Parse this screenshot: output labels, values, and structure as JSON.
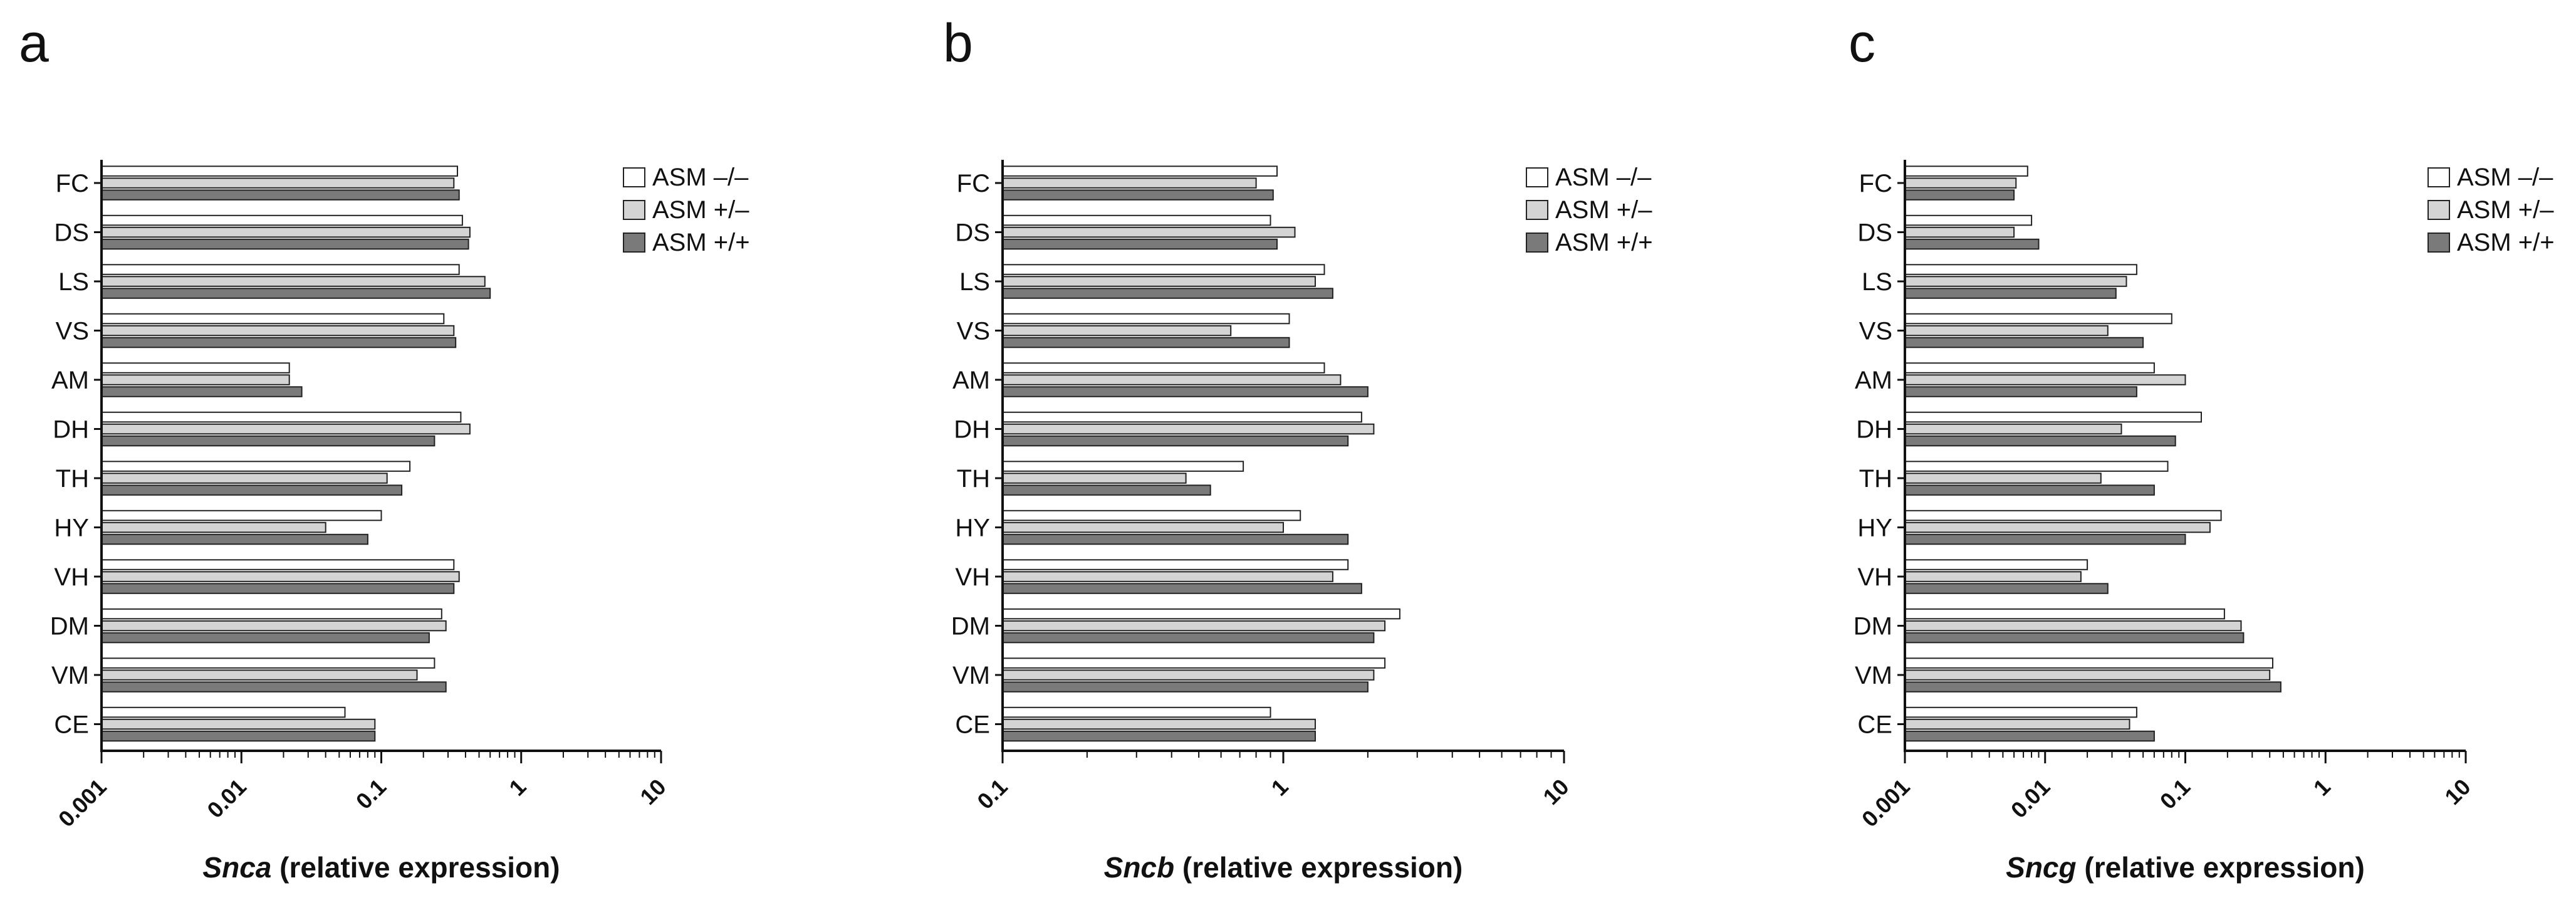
{
  "chart_data": [
    {
      "panel": "a",
      "type": "bar",
      "orientation": "horizontal",
      "scale": "log",
      "xlim": [
        0.001,
        10
      ],
      "xticks": [
        "0.001",
        "0.01",
        "0.1",
        "1",
        "10"
      ],
      "xlabel_gene": "Snca",
      "xlabel_rest": " (relative expression)",
      "categories": [
        "FC",
        "DS",
        "LS",
        "VS",
        "AM",
        "DH",
        "TH",
        "HY",
        "VH",
        "DM",
        "VM",
        "CE"
      ],
      "series": [
        {
          "name": "ASM –/–",
          "color": "#ffffff",
          "values": [
            0.35,
            0.38,
            0.36,
            0.28,
            0.022,
            0.37,
            0.16,
            0.1,
            0.33,
            0.27,
            0.24,
            0.055
          ]
        },
        {
          "name": "ASM +/–",
          "color": "#d4d4d4",
          "values": [
            0.33,
            0.43,
            0.55,
            0.33,
            0.022,
            0.43,
            0.11,
            0.04,
            0.36,
            0.29,
            0.18,
            0.09
          ]
        },
        {
          "name": "ASM +/+",
          "color": "#7a7a7a",
          "values": [
            0.36,
            0.42,
            0.6,
            0.34,
            0.027,
            0.24,
            0.14,
            0.08,
            0.33,
            0.22,
            0.29,
            0.09
          ]
        }
      ]
    },
    {
      "panel": "b",
      "type": "bar",
      "orientation": "horizontal",
      "scale": "log",
      "xlim": [
        0.1,
        10
      ],
      "xticks": [
        "0.1",
        "1",
        "10"
      ],
      "xlabel_gene": "Sncb",
      "xlabel_rest": " (relative expression)",
      "categories": [
        "FC",
        "DS",
        "LS",
        "VS",
        "AM",
        "DH",
        "TH",
        "HY",
        "VH",
        "DM",
        "VM",
        "CE"
      ],
      "series": [
        {
          "name": "ASM –/–",
          "color": "#ffffff",
          "values": [
            0.95,
            0.9,
            1.4,
            1.05,
            1.4,
            1.9,
            0.72,
            1.15,
            1.7,
            2.6,
            2.3,
            0.9
          ]
        },
        {
          "name": "ASM +/–",
          "color": "#d4d4d4",
          "values": [
            0.8,
            1.1,
            1.3,
            0.65,
            1.6,
            2.1,
            0.45,
            1.0,
            1.5,
            2.3,
            2.1,
            1.3
          ]
        },
        {
          "name": "ASM +/+",
          "color": "#7a7a7a",
          "values": [
            0.92,
            0.95,
            1.5,
            1.05,
            2.0,
            1.7,
            0.55,
            1.7,
            1.9,
            2.1,
            2.0,
            1.3
          ]
        }
      ]
    },
    {
      "panel": "c",
      "type": "bar",
      "orientation": "horizontal",
      "scale": "log",
      "xlim": [
        0.001,
        10
      ],
      "xticks": [
        "0.001",
        "0.01",
        "0.1",
        "1",
        "10"
      ],
      "xlabel_gene": "Sncg",
      "xlabel_rest": " (relative expression)",
      "categories": [
        "FC",
        "DS",
        "LS",
        "VS",
        "AM",
        "DH",
        "TH",
        "HY",
        "VH",
        "DM",
        "VM",
        "CE"
      ],
      "series": [
        {
          "name": "ASM –/–",
          "color": "#ffffff",
          "values": [
            0.0075,
            0.008,
            0.045,
            0.08,
            0.06,
            0.13,
            0.075,
            0.18,
            0.02,
            0.19,
            0.42,
            0.045
          ]
        },
        {
          "name": "ASM +/–",
          "color": "#d4d4d4",
          "values": [
            0.0062,
            0.006,
            0.038,
            0.028,
            0.1,
            0.035,
            0.025,
            0.15,
            0.018,
            0.25,
            0.4,
            0.04
          ]
        },
        {
          "name": "ASM +/+",
          "color": "#7a7a7a",
          "values": [
            0.006,
            0.009,
            0.032,
            0.05,
            0.045,
            0.085,
            0.06,
            0.1,
            0.028,
            0.26,
            0.48,
            0.06
          ]
        }
      ]
    }
  ]
}
